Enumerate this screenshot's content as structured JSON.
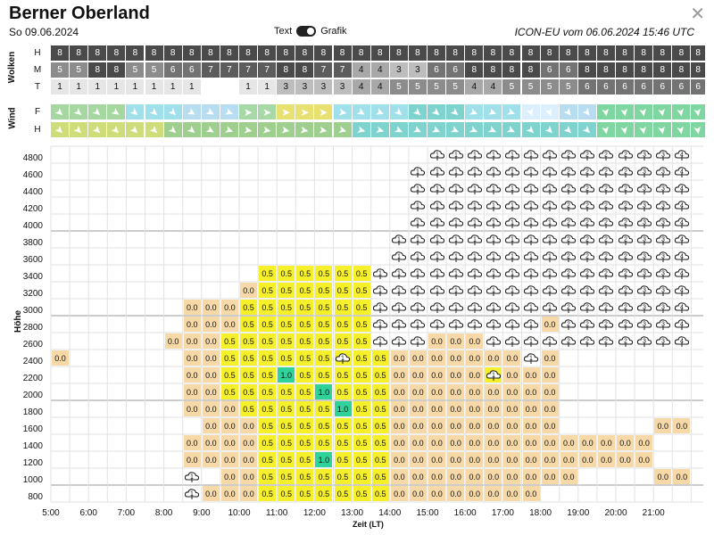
{
  "header": {
    "title": "Berner Oberland",
    "date": "So 09.06.2024",
    "toggle_left": "Text",
    "toggle_right": "Grafik",
    "model": "ICON-EU vom 06.06.2024 15:46 UTC",
    "close_icon": "close-icon"
  },
  "wolken": {
    "label": "Wolken",
    "rows": [
      {
        "name": "H",
        "values": [
          8,
          8,
          8,
          8,
          8,
          8,
          8,
          8,
          8,
          8,
          8,
          8,
          8,
          8,
          8,
          8,
          8,
          8,
          8,
          8,
          8,
          8,
          8,
          8,
          8,
          8,
          8,
          8,
          8,
          8,
          8,
          8,
          8,
          8,
          8,
          8,
          8
        ]
      },
      {
        "name": "M",
        "values": [
          5,
          5,
          8,
          8,
          5,
          5,
          6,
          6,
          7,
          7,
          7,
          7,
          8,
          8,
          7,
          7,
          4,
          4,
          3,
          3,
          6,
          6,
          8,
          8,
          8,
          8,
          6,
          6,
          8,
          8,
          8,
          8,
          8,
          8,
          8,
          7,
          7
        ]
      },
      {
        "name": "T",
        "values": [
          "1",
          "1",
          "1",
          "1",
          "1",
          "1",
          "1",
          "1",
          "",
          "",
          "1",
          "1",
          "3",
          "3",
          "3",
          "3",
          "4",
          "4",
          "5",
          "5",
          "5",
          "5",
          "4",
          "4",
          "5",
          "5",
          "5",
          "5",
          "6",
          "6",
          "6",
          "6",
          "6",
          "6",
          "6",
          "5",
          "5"
        ]
      }
    ]
  },
  "wind": {
    "label": "Wind",
    "rows": [
      {
        "name": "F"
      },
      {
        "name": "H"
      }
    ],
    "icon": "wind-arrow-icon"
  },
  "grid": {
    "y_labels": [
      "4800",
      "4600",
      "4400",
      "4200",
      "4000",
      "3800",
      "3600",
      "3400",
      "3200",
      "3000",
      "2800",
      "2600",
      "2400",
      "2200",
      "2000",
      "1800",
      "1600",
      "1400",
      "1200",
      "1000",
      "800"
    ],
    "x_labels": [
      "5:00",
      "6:00",
      "7:00",
      "8:00",
      "9:00",
      "10:00",
      "11:00",
      "12:00",
      "13:00",
      "14:00",
      "15:00",
      "16:00",
      "17:00",
      "18:00",
      "19:00",
      "20:00",
      "21:00"
    ],
    "y_title": "Höhe",
    "x_title": "Zeit (LT)",
    "values": {
      "zero": "0.0",
      "half": "0.5",
      "one": "1.0"
    },
    "icon_name": "thermal-cloud-icon",
    "icon_digits": [
      "1",
      "2",
      "3",
      "4",
      "5"
    ]
  }
}
